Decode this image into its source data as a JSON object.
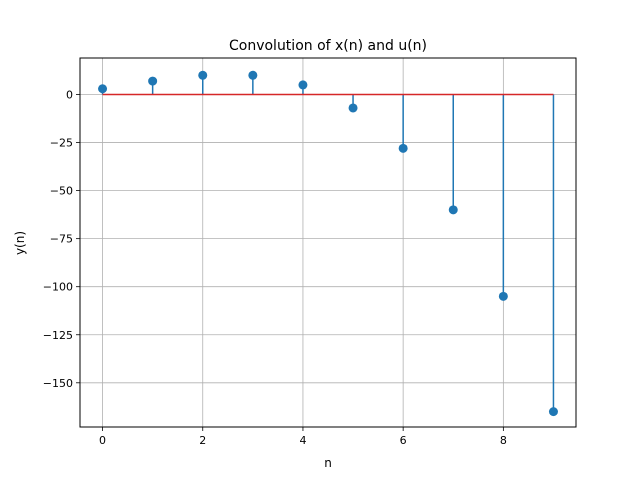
{
  "chart_data": {
    "type": "stem",
    "title": "Convolution of x(n) and u(n)",
    "xlabel": "n",
    "ylabel": "y(n)",
    "x": [
      0,
      1,
      2,
      3,
      4,
      5,
      6,
      7,
      8,
      9
    ],
    "y": [
      3,
      7,
      10,
      10,
      5,
      -7,
      -28,
      -60,
      -105,
      -165
    ],
    "baseline": 0,
    "xlim": [
      -0.45,
      9.45
    ],
    "ylim": [
      -173,
      19
    ],
    "xticks": [
      0,
      2,
      4,
      6,
      8
    ],
    "xtick_labels": [
      "0",
      "2",
      "4",
      "6",
      "8"
    ],
    "yticks": [
      0,
      -25,
      -50,
      -75,
      -100,
      -125,
      -150
    ],
    "ytick_labels": [
      "0",
      "−25",
      "−50",
      "−75",
      "−100",
      "−125",
      "−150"
    ],
    "grid": true,
    "colors": {
      "stem": "#1f77b4",
      "baseline": "#d62728",
      "grid": "#b0b0b0",
      "axes": "#000000"
    }
  }
}
